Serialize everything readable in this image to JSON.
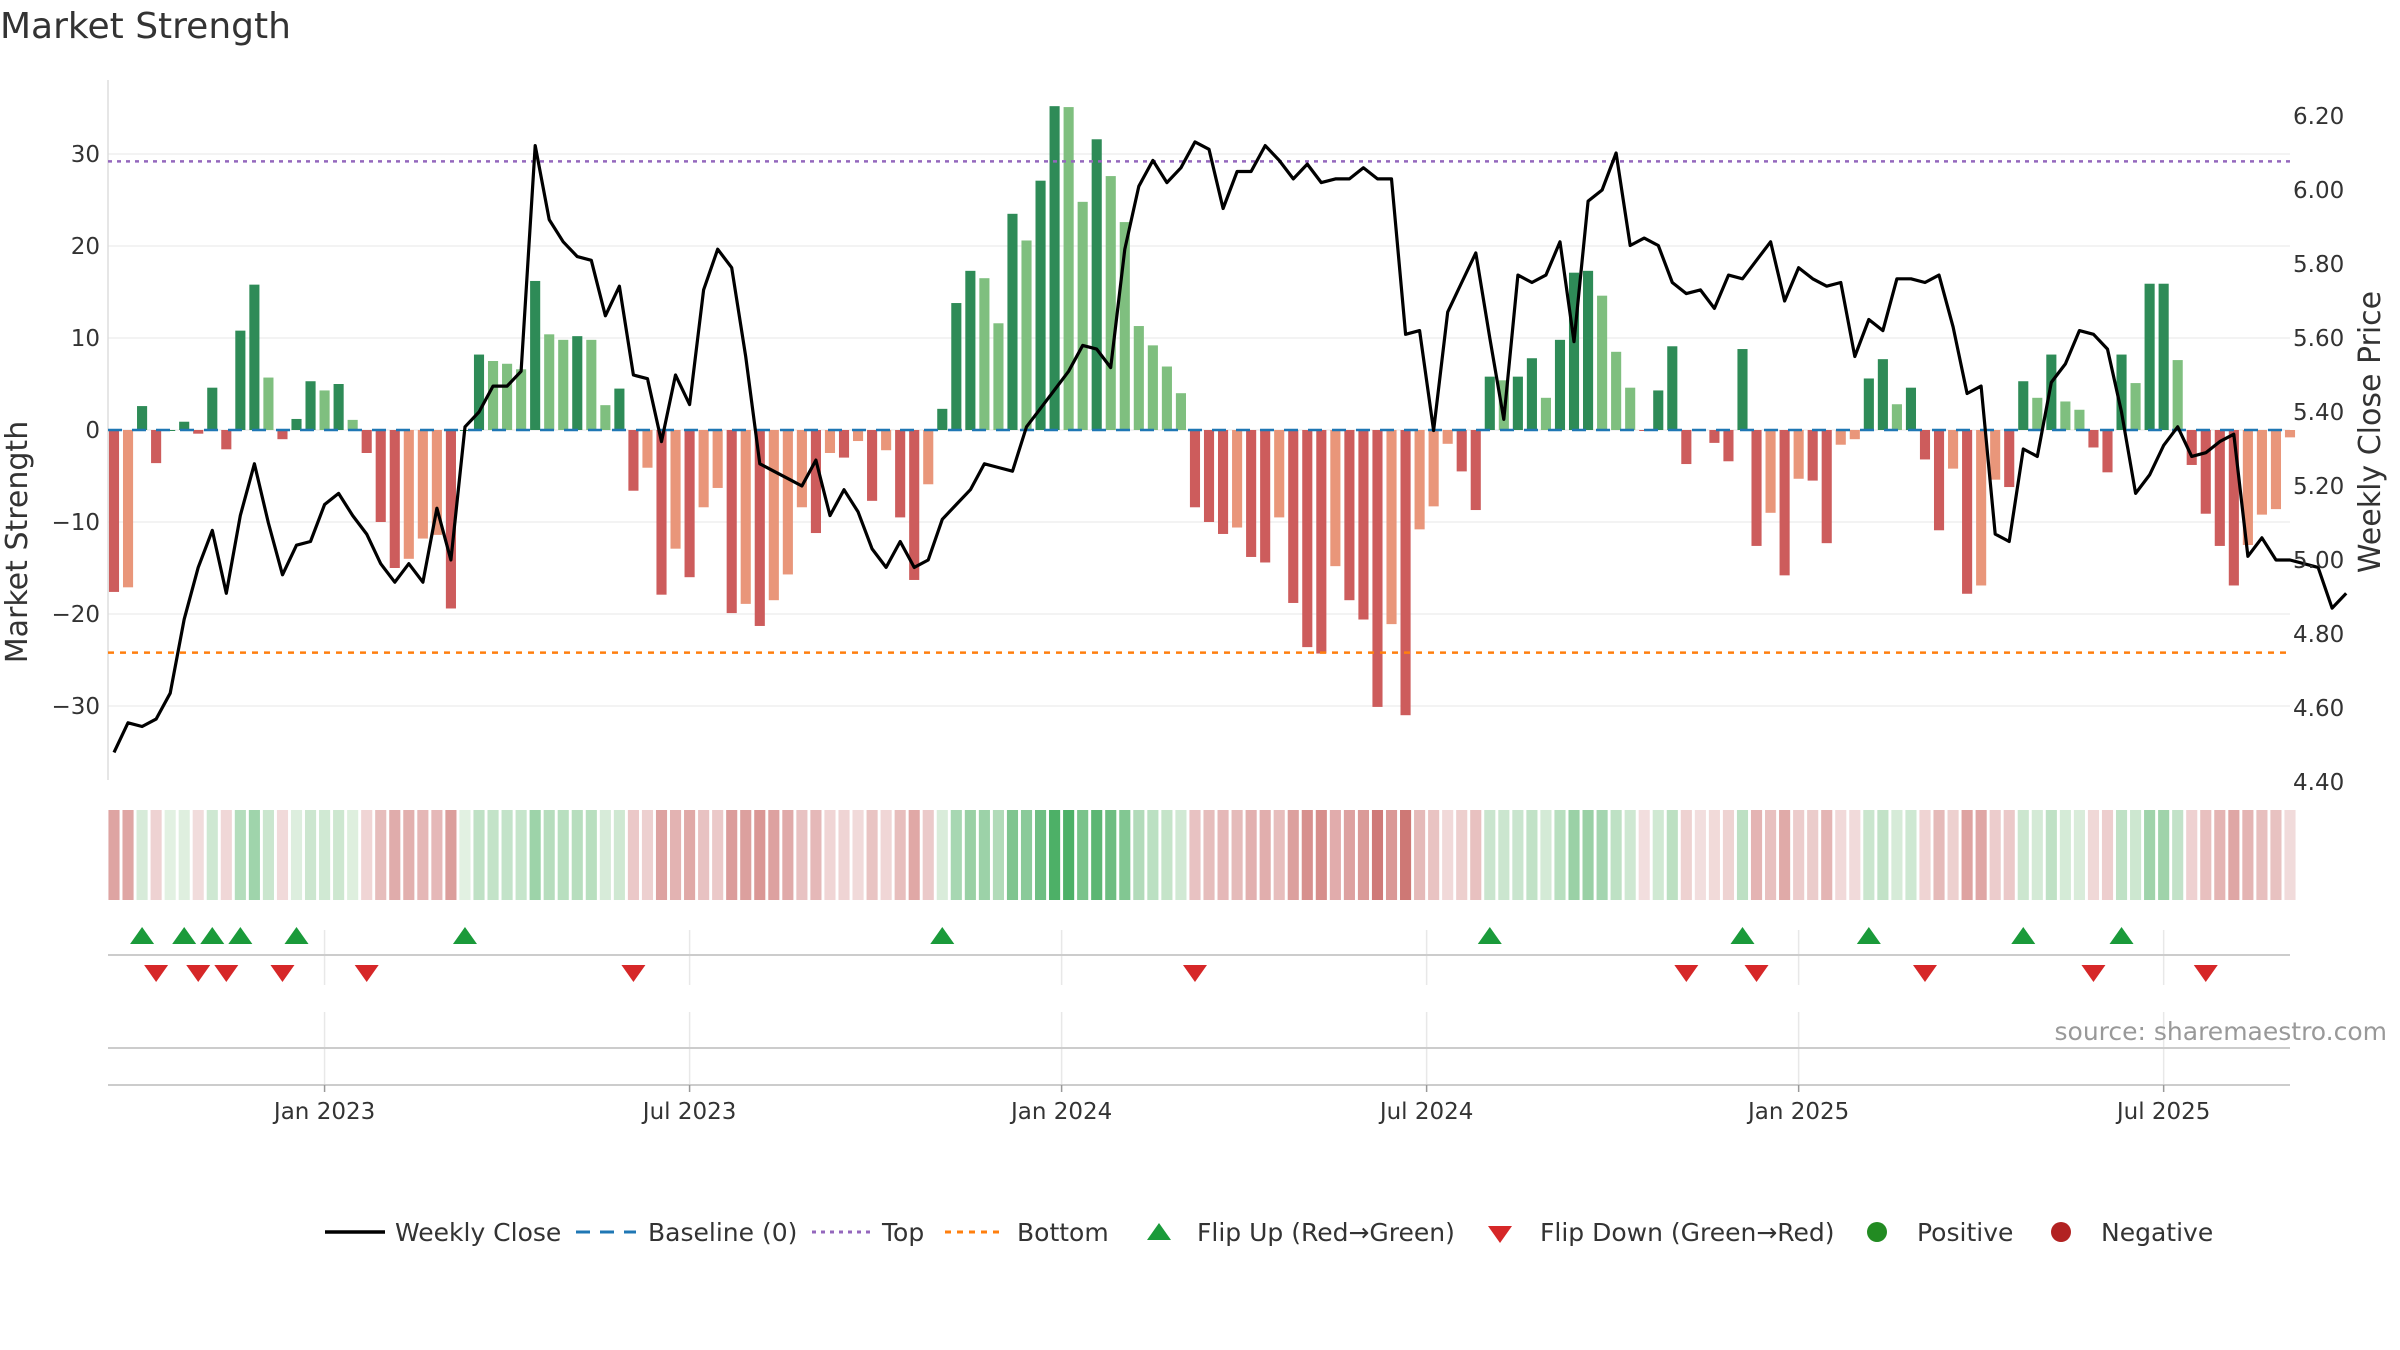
{
  "chart_data": {
    "type": "bar",
    "title": "Market Strength",
    "ylabel": "Market Strength",
    "y2label": "Weekly Close Price",
    "ylim": [
      -38,
      38
    ],
    "y2lim": [
      4.4,
      6.3
    ],
    "yticks": [
      -30,
      -20,
      -10,
      0,
      10,
      20,
      30
    ],
    "yticklabels": [
      "−30",
      "−20",
      "−10",
      "0",
      "10",
      "20",
      "30"
    ],
    "y2ticks": [
      "4.40",
      "4.60",
      "4.80",
      "5.00",
      "5.20",
      "5.40",
      "5.60",
      "5.80",
      "6.00",
      "6.20"
    ],
    "xticks": [
      "Jan 2023",
      "Jul 2023",
      "Jan 2024",
      "Jul 2024",
      "Jan 2025",
      "Jul 2025"
    ],
    "xtick_weeks": [
      15,
      41,
      67.5,
      93.5,
      120,
      146
    ],
    "top_line": 29.2,
    "bottom_line": -24.2,
    "strength": [
      -17.6,
      -17.1,
      2.6,
      -3.6,
      0,
      0.9,
      -0.4,
      4.6,
      -2.1,
      10.8,
      15.8,
      5.7,
      -1,
      1.2,
      5.3,
      4.3,
      5,
      1.1,
      -2.5,
      -10,
      -15,
      -14,
      -11.8,
      -11.4,
      -19.4,
      0,
      8.2,
      7.5,
      7.2,
      6.6,
      16.2,
      10.4,
      9.8,
      10.2,
      9.8,
      2.7,
      4.5,
      -6.6,
      -4.1,
      -17.9,
      -12.9,
      -16,
      -8.4,
      -6.3,
      -19.9,
      -18.9,
      -21.3,
      -18.5,
      -15.7,
      -8.4,
      -11.2,
      -2.5,
      -3,
      -1.2,
      -7.7,
      -2.2,
      -9.5,
      -16.3,
      -5.9,
      2.3,
      13.8,
      17.3,
      16.5,
      11.6,
      23.5,
      20.6,
      27.1,
      35.2,
      35.1,
      24.8,
      31.6,
      27.6,
      22.6,
      11.3,
      9.2,
      6.9,
      4,
      -8.4,
      -10,
      -11.3,
      -10.6,
      -13.8,
      -14.4,
      -9.5,
      -18.8,
      -23.6,
      -24.3,
      -14.8,
      -18.5,
      -20.6,
      -30.1,
      -21.1,
      -31,
      -10.8,
      -8.3,
      -1.5,
      -4.5,
      -8.7,
      5.8,
      5.4,
      5.8,
      7.8,
      3.5,
      9.8,
      17.1,
      17.3,
      14.6,
      8.5,
      4.6,
      -0.1,
      4.3,
      9.1,
      -3.7,
      -0.1,
      -1.4,
      -3.4,
      8.8,
      -12.6,
      -9,
      -15.8,
      -5.3,
      -5.5,
      -12.3,
      -1.6,
      -1,
      5.6,
      7.7,
      2.8,
      4.6,
      -3.2,
      -10.9,
      -4.2,
      -17.8,
      -16.9,
      -5.4,
      -6.2,
      5.3,
      3.5,
      8.2,
      3.1,
      2.2,
      -1.9,
      -4.6,
      8.2,
      5.1,
      15.9,
      15.9,
      7.6,
      -3.8,
      -9.1,
      -12.6,
      -16.9,
      -12.5,
      -9.2,
      -8.6,
      -0.8
    ],
    "price": [
      4.48,
      4.56,
      4.55,
      4.57,
      4.64,
      4.84,
      4.98,
      5.08,
      4.91,
      5.12,
      5.26,
      5.1,
      4.96,
      5.04,
      5.05,
      5.15,
      5.18,
      5.12,
      5.07,
      4.99,
      4.94,
      4.99,
      4.94,
      5.14,
      5.0,
      5.36,
      5.4,
      5.47,
      5.47,
      5.51,
      6.12,
      5.92,
      5.86,
      5.82,
      5.81,
      5.66,
      5.74,
      5.5,
      5.49,
      5.32,
      5.5,
      5.42,
      5.73,
      5.84,
      5.79,
      5.55,
      5.26,
      5.24,
      5.22,
      5.2,
      5.27,
      5.12,
      5.19,
      5.13,
      5.03,
      4.98,
      5.05,
      4.98,
      5.0,
      5.11,
      5.15,
      5.19,
      5.26,
      5.25,
      5.24,
      5.36,
      5.41,
      5.46,
      5.51,
      5.58,
      5.57,
      5.52,
      5.84,
      6.01,
      6.08,
      6.02,
      6.06,
      6.13,
      6.11,
      5.95,
      6.05,
      6.05,
      6.12,
      6.08,
      6.03,
      6.07,
      6.02,
      6.03,
      6.03,
      6.06,
      6.03,
      6.03,
      5.61,
      5.62,
      5.35,
      5.67,
      5.75,
      5.83,
      5.6,
      5.38,
      5.77,
      5.75,
      5.77,
      5.86,
      5.59,
      5.97,
      6.0,
      6.1,
      5.85,
      5.87,
      5.85,
      5.75,
      5.72,
      5.73,
      5.68,
      5.77,
      5.76,
      5.81,
      5.86,
      5.7,
      5.79,
      5.76,
      5.74,
      5.75,
      5.55,
      5.65,
      5.62,
      5.76,
      5.76,
      5.75,
      5.77,
      5.63,
      5.45,
      5.47,
      5.07,
      5.05,
      5.3,
      5.28,
      5.48,
      5.53,
      5.62,
      5.61,
      5.57,
      5.4,
      5.18,
      5.23,
      5.31,
      5.36,
      5.28,
      5.29,
      5.32,
      5.34,
      5.01,
      5.06,
      5.0,
      5.0,
      4.99,
      4.98,
      4.87,
      4.91
    ],
    "flip_up_weeks": [
      2,
      5,
      7,
      9,
      13,
      25,
      59,
      98,
      116,
      125,
      136,
      143
    ],
    "flip_down_weeks": [
      3,
      6,
      8,
      12,
      18,
      37,
      77,
      112,
      117,
      129,
      141,
      149
    ],
    "legend": [
      "Weekly Close",
      "Baseline (0)",
      "Top",
      "Bottom",
      "Flip Up (Red→Green)",
      "Flip Down (Green→Red)",
      "Positive",
      "Negative"
    ],
    "source": "source: sharemaestro.com"
  },
  "colors": {
    "pos_strong": "#2e8b57",
    "pos_weak": "#7fbf7f",
    "neg_strong": "#cd5c5c",
    "neg_weak": "#e9967a",
    "price_line": "#000000",
    "baseline": "#1f77b4",
    "top": "#9467bd",
    "bottom": "#ff7f0e",
    "flip_up": "#1a9a3a",
    "flip_down": "#d62728",
    "legend_positive": "#228b22",
    "legend_negative": "#b22222"
  }
}
